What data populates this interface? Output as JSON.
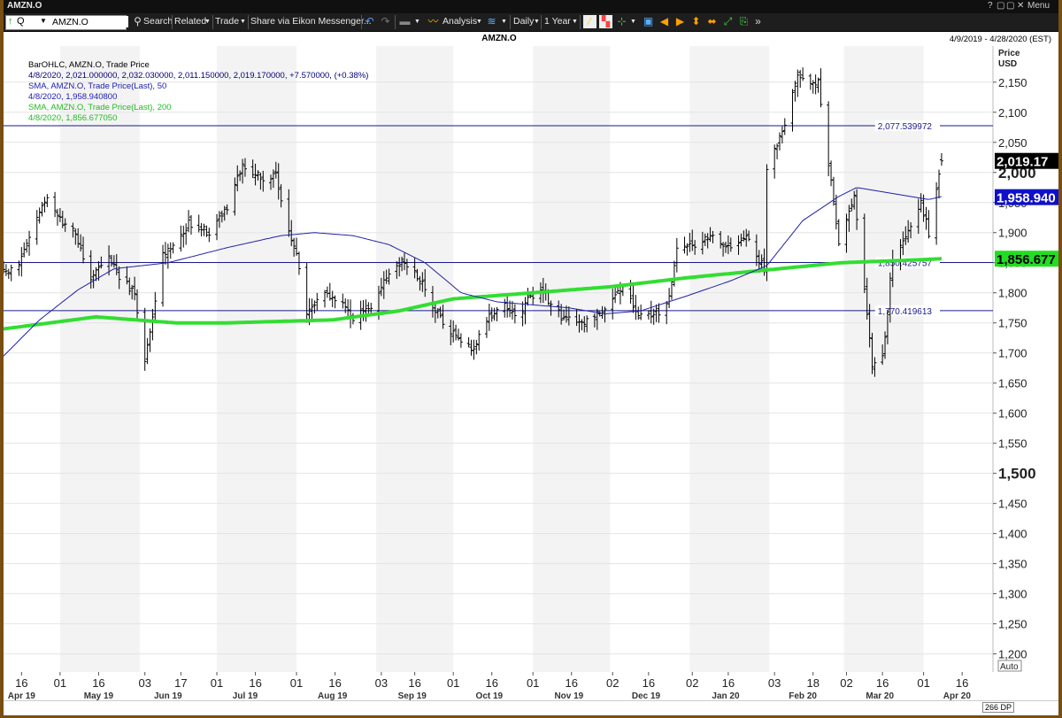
{
  "window": {
    "title": "AMZN.O",
    "menu_label": "Menu"
  },
  "toolbar": {
    "ric_value": "AMZN.O",
    "search_label": "Search",
    "related_label": "Related",
    "trade_label": "Trade",
    "share_label": "Share via Eikon Messenger...",
    "analysis_label": "Analysis",
    "interval_label": "Daily",
    "period_label": "1 Year"
  },
  "chart_header": {
    "symbol": "AMZN.O",
    "date_range": "4/9/2019 - 4/28/2020 (EST)"
  },
  "legend": [
    {
      "text": "BarOHLC, AMZN.O, Trade Price",
      "color": "#000000"
    },
    {
      "text": "4/8/2020, 2,021.000000, 2,032.030000, 2,011.150000, 2,019.170000, +7.570000, (+0.38%)",
      "color": "#00007a"
    },
    {
      "text": "SMA, AMZN.O, Trade Price(Last), 50",
      "color": "#1a1ab0"
    },
    {
      "text": "4/8/2020, 1,958.940800",
      "color": "#1a1ab0"
    },
    {
      "text": "SMA, AMZN.O, Trade Price(Last), 200",
      "color": "#22bb22"
    },
    {
      "text": "4/8/2020, 1,856.677050",
      "color": "#22bb22"
    }
  ],
  "axis": {
    "price_label": "Price",
    "currency_label": "USD",
    "auto_label": "Auto"
  },
  "status": {
    "data_points": "266 DP"
  },
  "chart_data": {
    "type": "line",
    "series_style": "ohlc_bar",
    "ylim": [
      1170,
      2210
    ],
    "yticks": [
      1200,
      1250,
      1300,
      1350,
      1400,
      1450,
      1500,
      1550,
      1600,
      1650,
      1700,
      1750,
      1800,
      1850,
      1900,
      1950,
      2000,
      2050,
      2100,
      2150
    ],
    "ytick_labels": [
      "1,200",
      "1,250",
      "1,300",
      "1,350",
      "1,400",
      "1,450",
      "1,500",
      "1,550",
      "1,600",
      "1,650",
      "1,700",
      "1,750",
      "1,800",
      "1,850",
      "1,900",
      "1,950",
      "2,000",
      "2,050",
      "2,100",
      "2,150"
    ],
    "bold_ticks": [
      "1,500",
      "2,000"
    ],
    "x_days": [
      "16",
      "01",
      "16",
      "03",
      "17",
      "01",
      "16",
      "01",
      "16",
      "03",
      "16",
      "01",
      "16",
      "01",
      "16",
      "02",
      "16",
      "02",
      "16",
      "03",
      "18",
      "02",
      "16",
      "01",
      "16"
    ],
    "x_months": [
      "Apr 19",
      "May 19",
      "Jun 19",
      "Jul 19",
      "Aug 19",
      "Sep 19",
      "Oct 19",
      "Nov 19",
      "Dec 19",
      "Jan 20",
      "Feb 20",
      "Mar 20",
      "Apr 20"
    ],
    "close_anchors": [
      [
        "2019-04-09",
        1835
      ],
      [
        "2019-04-15",
        1845
      ],
      [
        "2019-04-23",
        1935
      ],
      [
        "2019-04-26",
        1955
      ],
      [
        "2019-05-01",
        1920
      ],
      [
        "2019-05-07",
        1900
      ],
      [
        "2019-05-13",
        1825
      ],
      [
        "2019-05-20",
        1860
      ],
      [
        "2019-05-24",
        1825
      ],
      [
        "2019-05-30",
        1800
      ],
      [
        "2019-06-03",
        1690
      ],
      [
        "2019-06-06",
        1760
      ],
      [
        "2019-06-10",
        1860
      ],
      [
        "2019-06-20",
        1915
      ],
      [
        "2019-06-28",
        1900
      ],
      [
        "2019-07-05",
        1940
      ],
      [
        "2019-07-11",
        2015
      ],
      [
        "2019-07-19",
        1990
      ],
      [
        "2019-07-24",
        1995
      ],
      [
        "2019-07-26",
        1950
      ],
      [
        "2019-08-01",
        1860
      ],
      [
        "2019-08-05",
        1770
      ],
      [
        "2019-08-12",
        1800
      ],
      [
        "2019-08-16",
        1790
      ],
      [
        "2019-08-23",
        1760
      ],
      [
        "2019-08-30",
        1780
      ],
      [
        "2019-09-06",
        1835
      ],
      [
        "2019-09-12",
        1855
      ],
      [
        "2019-09-18",
        1820
      ],
      [
        "2019-09-25",
        1765
      ],
      [
        "2019-10-01",
        1730
      ],
      [
        "2019-10-08",
        1705
      ],
      [
        "2019-10-15",
        1760
      ],
      [
        "2019-10-21",
        1785
      ],
      [
        "2019-10-25",
        1760
      ],
      [
        "2019-10-28",
        1775
      ],
      [
        "2019-10-31",
        1795
      ],
      [
        "2019-11-05",
        1800
      ],
      [
        "2019-11-12",
        1760
      ],
      [
        "2019-11-20",
        1745
      ],
      [
        "2019-11-26",
        1770
      ],
      [
        "2019-12-02",
        1785
      ],
      [
        "2019-12-06",
        1810
      ],
      [
        "2019-12-12",
        1760
      ],
      [
        "2019-12-18",
        1760
      ],
      [
        "2019-12-24",
        1790
      ],
      [
        "2019-12-27",
        1870
      ],
      [
        "2020-01-03",
        1880
      ],
      [
        "2020-01-09",
        1900
      ],
      [
        "2020-01-15",
        1875
      ],
      [
        "2020-01-23",
        1890
      ],
      [
        "2020-01-30",
        1840
      ],
      [
        "2020-01-31",
        2010
      ],
      [
        "2020-02-06",
        2070
      ],
      [
        "2020-02-12",
        2160
      ],
      [
        "2020-02-20",
        2150
      ],
      [
        "2020-02-24",
        2015
      ],
      [
        "2020-02-28",
        1880
      ],
      [
        "2020-03-05",
        1960
      ],
      [
        "2020-03-09",
        1800
      ],
      [
        "2020-03-12",
        1680
      ],
      [
        "2020-03-16",
        1690
      ],
      [
        "2020-03-20",
        1860
      ],
      [
        "2020-03-25",
        1900
      ],
      [
        "2020-03-31",
        1950
      ],
      [
        "2020-04-03",
        1900
      ],
      [
        "2020-04-08",
        2020
      ]
    ],
    "last_bar": {
      "date": "2020-04-08",
      "open": 2021.0,
      "high": 2032.03,
      "low": 2011.15,
      "close": 2019.17
    },
    "sma50_anchors": [
      [
        "2019-04-09",
        1695
      ],
      [
        "2019-04-23",
        1755
      ],
      [
        "2019-05-08",
        1805
      ],
      [
        "2019-05-22",
        1840
      ],
      [
        "2019-06-12",
        1850
      ],
      [
        "2019-07-05",
        1875
      ],
      [
        "2019-07-26",
        1895
      ],
      [
        "2019-08-08",
        1900
      ],
      [
        "2019-08-23",
        1895
      ],
      [
        "2019-09-06",
        1880
      ],
      [
        "2019-09-20",
        1850
      ],
      [
        "2019-10-04",
        1800
      ],
      [
        "2019-10-18",
        1785
      ],
      [
        "2019-11-01",
        1780
      ],
      [
        "2019-11-15",
        1775
      ],
      [
        "2019-11-29",
        1765
      ],
      [
        "2019-12-13",
        1770
      ],
      [
        "2019-12-31",
        1795
      ],
      [
        "2020-01-17",
        1820
      ],
      [
        "2020-01-31",
        1845
      ],
      [
        "2020-02-14",
        1920
      ],
      [
        "2020-02-28",
        1960
      ],
      [
        "2020-03-06",
        1975
      ],
      [
        "2020-03-20",
        1965
      ],
      [
        "2020-04-03",
        1955
      ],
      [
        "2020-04-08",
        1960
      ]
    ],
    "sma200_anchors": [
      [
        "2019-04-09",
        1740
      ],
      [
        "2019-05-15",
        1760
      ],
      [
        "2019-06-15",
        1750
      ],
      [
        "2019-07-05",
        1750
      ],
      [
        "2019-08-15",
        1755
      ],
      [
        "2019-09-10",
        1770
      ],
      [
        "2019-10-01",
        1790
      ],
      [
        "2019-11-01",
        1800
      ],
      [
        "2019-12-01",
        1810
      ],
      [
        "2019-12-31",
        1825
      ],
      [
        "2020-01-31",
        1838
      ],
      [
        "2020-02-29",
        1850
      ],
      [
        "2020-03-31",
        1855
      ],
      [
        "2020-04-08",
        1856.68
      ]
    ],
    "hlines": [
      {
        "value": 2077.539972,
        "label": "2,077.539972"
      },
      {
        "value": 1850.425757,
        "label": "1,850.425757"
      },
      {
        "value": 1770.419613,
        "label": "1,770.419613"
      }
    ],
    "last_value_tags": [
      {
        "label": "2,019.17",
        "value": 2019.17,
        "bg": "#000000",
        "fg": "#ffffff"
      },
      {
        "label": "1,958.940",
        "value": 1958.94,
        "bg": "#1010c8",
        "fg": "#ffffff"
      },
      {
        "label": "1,856.677",
        "value": 1856.68,
        "bg": "#22dd22",
        "fg": "#000000"
      }
    ],
    "colors": {
      "bars": "#000000",
      "sma50": "#2020aa",
      "sma200": "#33dd33",
      "hline": "#1a1a8c"
    }
  }
}
